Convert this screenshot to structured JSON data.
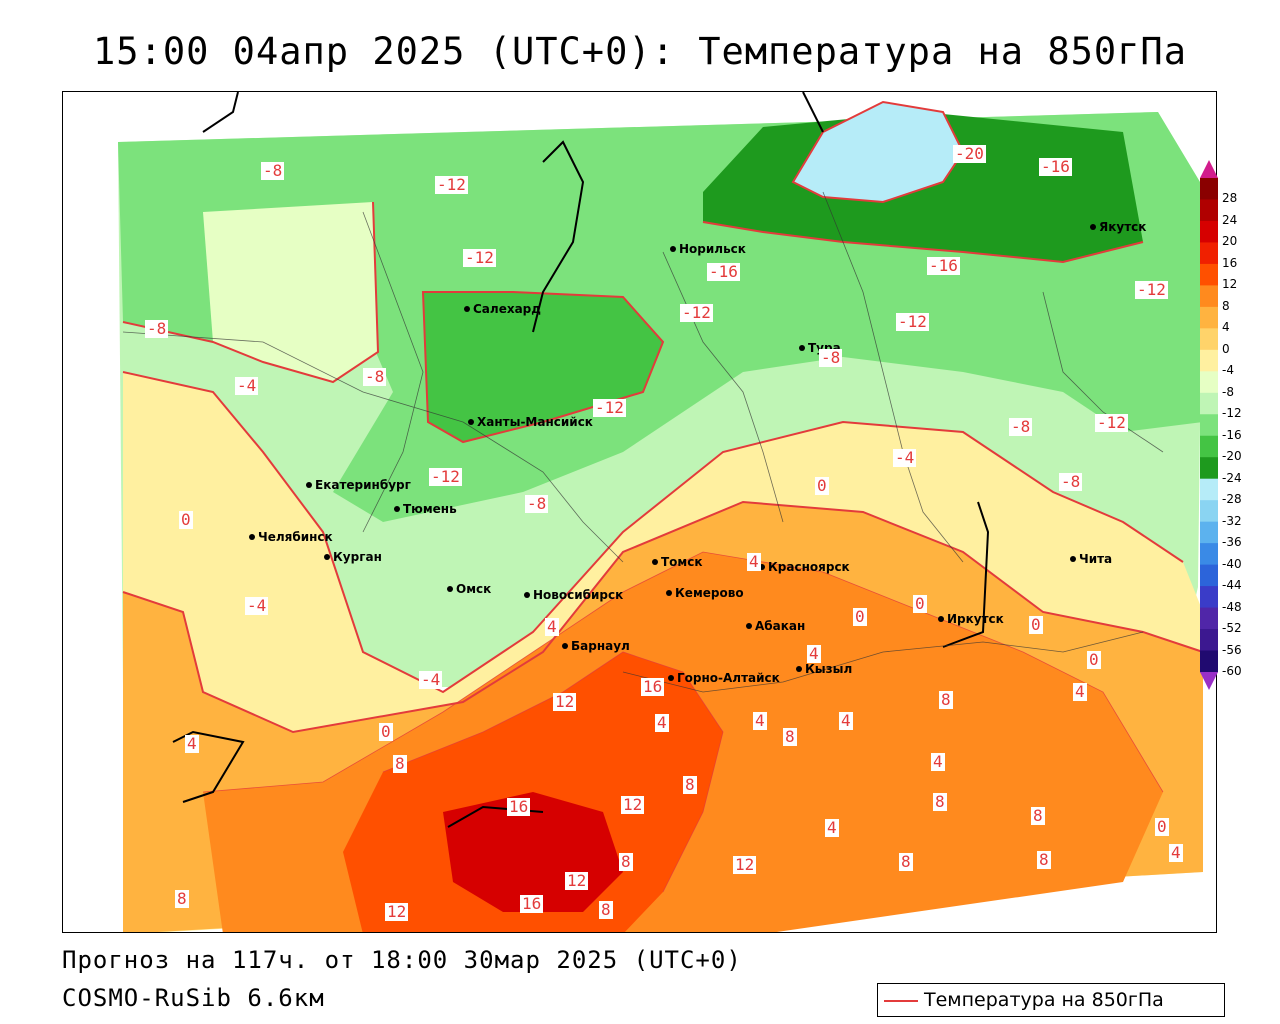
{
  "header": {
    "title": "15:00 04апр 2025 (UTC+0): Температура на 850гПа"
  },
  "footer": {
    "forecast_line": "Прогноз на 117ч. от 18:00 30мар 2025 (UTC+0)",
    "model_line": "COSMO-RuSib 6.6км"
  },
  "legend": {
    "label": "Температура на 850гПа",
    "line_color": "#e33b3b"
  },
  "colorbar": {
    "ticks": [
      "28",
      "24",
      "20",
      "16",
      "12",
      "8",
      "4",
      "0",
      "-4",
      "-8",
      "-12",
      "-16",
      "-20",
      "-24",
      "-28",
      "-32",
      "-36",
      "-40",
      "-44",
      "-48",
      "-52",
      "-56",
      "-60"
    ],
    "colors": [
      "#8a0000",
      "#b00000",
      "#d60000",
      "#f02000",
      "#ff5000",
      "#ff8a1e",
      "#ffb340",
      "#ffd36a",
      "#fff0a0",
      "#e6ffc4",
      "#bff5b5",
      "#7ce27c",
      "#44c444",
      "#1e9a1e",
      "#b6ecf8",
      "#8ad4f2",
      "#5cb2ee",
      "#3a8ae6",
      "#2c64da",
      "#3a3cc8",
      "#5026a8",
      "#3c1890",
      "#200a70"
    ],
    "top_arrow_color": "#d21c8c",
    "bottom_arrow_color": "#9a30c8"
  },
  "cities": [
    {
      "name": "Норильск"
    },
    {
      "name": "Якутск"
    },
    {
      "name": "Салехард"
    },
    {
      "name": "Тура"
    },
    {
      "name": "Ханты-Мансийск"
    },
    {
      "name": "Екатеринбург"
    },
    {
      "name": "Тюмень"
    },
    {
      "name": "Челябинск"
    },
    {
      "name": "Курган"
    },
    {
      "name": "Омск"
    },
    {
      "name": "Томск"
    },
    {
      "name": "Красноярск"
    },
    {
      "name": "Кемерово"
    },
    {
      "name": "Новосибирск"
    },
    {
      "name": "Абакан"
    },
    {
      "name": "Иркутск"
    },
    {
      "name": "Барнаул"
    },
    {
      "name": "Кызыл"
    },
    {
      "name": "Горно-Алтайск"
    },
    {
      "name": "Чита"
    }
  ],
  "contour_labels": [
    "-20",
    "-16",
    "-16",
    "-16",
    "-12",
    "-12",
    "-12",
    "-12",
    "-12",
    "-12",
    "-12",
    "-12",
    "-8",
    "-8",
    "-8",
    "-8",
    "-8",
    "-8",
    "-8",
    "-4",
    "-4",
    "-4",
    "-4",
    "0",
    "0",
    "0",
    "0",
    "0",
    "0",
    "0",
    "0",
    "4",
    "4",
    "4",
    "4",
    "4",
    "4",
    "4",
    "4",
    "4",
    "4",
    "4",
    "8",
    "8",
    "8",
    "8",
    "8",
    "8",
    "8",
    "8",
    "8",
    "8",
    "8",
    "12",
    "12",
    "12",
    "12",
    "12",
    "16",
    "16",
    "16"
  ]
}
